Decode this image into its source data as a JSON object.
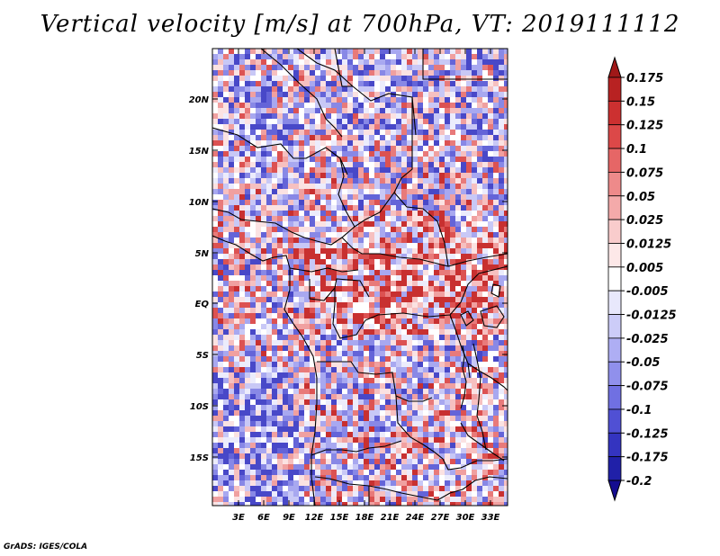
{
  "title": "Vertical velocity [m/s] at 700hPa, VT: 2019111112",
  "footer": "GrADS: IGES/COLA",
  "map": {
    "lat_labels": [
      "20N",
      "15N",
      "10N",
      "5N",
      "EQ",
      "5S",
      "10S",
      "15S"
    ],
    "lon_labels": [
      "3E",
      "6E",
      "9E",
      "12E",
      "15E",
      "18E",
      "21E",
      "24E",
      "27E",
      "30E",
      "33E"
    ]
  },
  "colorbar": {
    "labels": [
      "0.175",
      "0.15",
      "0.125",
      "0.1",
      "0.075",
      "0.05",
      "0.025",
      "0.0125",
      "0.005",
      "-0.005",
      "-0.0125",
      "-0.025",
      "-0.05",
      "-0.075",
      "-0.1",
      "-0.125",
      "-0.175",
      "-0.2"
    ],
    "colors": [
      "#a01818",
      "#b82222",
      "#cc3030",
      "#dc4848",
      "#e66666",
      "#ee8a8a",
      "#f4aaaa",
      "#f9cccc",
      "#fde8e8",
      "#ffffff",
      "#e8e8fc",
      "#ccccf8",
      "#aeaef4",
      "#9090ec",
      "#7070e2",
      "#5050d4",
      "#3434c0",
      "#2020a8",
      "#140c90"
    ]
  }
}
